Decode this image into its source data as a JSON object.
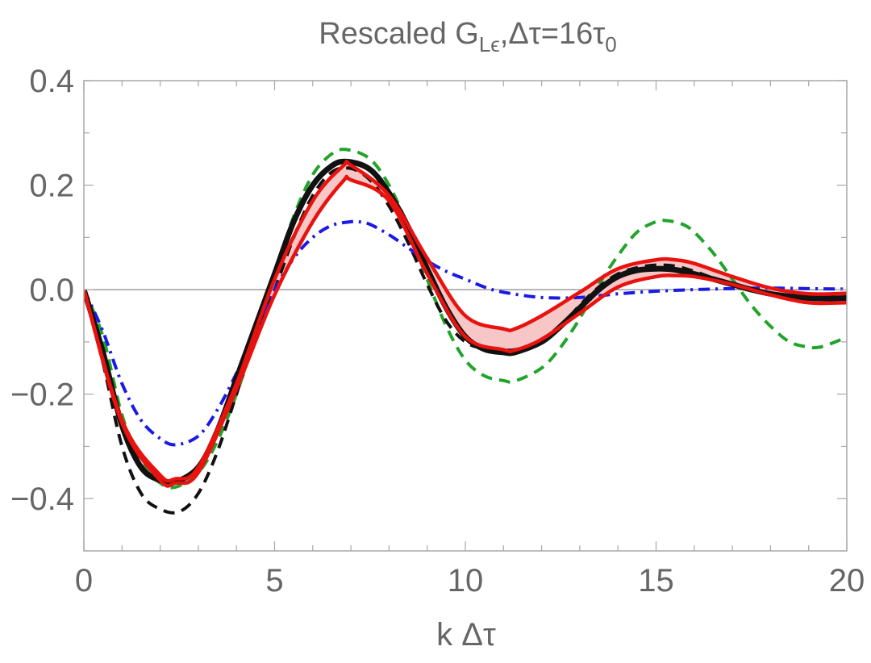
{
  "chart_data": {
    "type": "line",
    "title": {
      "prefix": "Rescaled G",
      "subscript": "Lϵ",
      "middle": ",Δτ=16τ",
      "suffix_subscript": "0"
    },
    "xlabel": "k Δτ",
    "ylabel": "",
    "xlim": [
      0,
      20
    ],
    "ylim": [
      -0.5,
      0.4
    ],
    "x_ticks": [
      0,
      5,
      10,
      15,
      20
    ],
    "x_tick_labels": [
      "0",
      "5",
      "10",
      "15",
      "20"
    ],
    "y_ticks": [
      0.4,
      0.2,
      0.0,
      -0.2,
      -0.4
    ],
    "y_tick_labels": [
      "0.4",
      "0.2",
      "0.0",
      "−0.2",
      "−0.4"
    ],
    "grid": false,
    "zero_line": true,
    "colors": {
      "frame": "#a8a8a8",
      "text": "#666666",
      "red": "#e8120f",
      "band": "#f7c6c6",
      "black": "#111111",
      "green": "#22a32b",
      "blue": "#1a1ae6"
    },
    "band": {
      "name": "red band",
      "x": [
        0,
        1,
        2,
        2.4,
        3,
        4,
        5,
        6,
        6.8,
        7,
        8,
        9,
        10,
        11,
        11.3,
        12,
        13,
        14,
        15,
        15.5,
        16,
        17,
        18,
        19,
        20
      ],
      "upper": [
        0,
        -0.25,
        -0.355,
        -0.362,
        -0.34,
        -0.18,
        0.02,
        0.17,
        0.237,
        0.238,
        0.18,
        0.06,
        -0.05,
        -0.075,
        -0.075,
        -0.05,
        -0.005,
        0.04,
        0.057,
        0.057,
        0.05,
        0.025,
        0.003,
        -0.008,
        -0.007
      ],
      "lower": [
        0,
        -0.255,
        -0.365,
        -0.37,
        -0.35,
        -0.19,
        -0.01,
        0.13,
        0.208,
        0.21,
        0.17,
        0.03,
        -0.09,
        -0.115,
        -0.116,
        -0.095,
        -0.045,
        0.005,
        0.025,
        0.027,
        0.025,
        0.01,
        -0.01,
        -0.025,
        -0.025
      ]
    },
    "series": [
      {
        "name": "green dashed",
        "style": "dashed",
        "color": "#22a32b",
        "x": [
          0,
          0.5,
          1,
          1.5,
          2,
          2.4,
          3,
          3.5,
          4,
          4.5,
          5,
          5.5,
          6,
          6.5,
          6.9,
          7.5,
          8,
          8.5,
          9,
          9.5,
          10,
          10.5,
          11,
          11.3,
          12,
          12.5,
          13,
          13.5,
          14,
          14.5,
          15,
          15.3,
          15.7,
          16,
          16.5,
          17,
          17.5,
          18,
          18.5,
          19,
          19.3,
          19.7,
          20
        ],
        "y": [
          0,
          -0.09,
          -0.24,
          -0.33,
          -0.37,
          -0.378,
          -0.35,
          -0.29,
          -0.2,
          -0.09,
          0.03,
          0.14,
          0.22,
          0.26,
          0.268,
          0.25,
          0.2,
          0.12,
          0.02,
          -0.07,
          -0.135,
          -0.165,
          -0.174,
          -0.175,
          -0.15,
          -0.11,
          -0.055,
          0.01,
          0.065,
          0.11,
          0.13,
          0.132,
          0.125,
          0.11,
          0.07,
          0.02,
          -0.03,
          -0.07,
          -0.1,
          -0.11,
          -0.11,
          -0.1,
          -0.09
        ]
      },
      {
        "name": "black dashed",
        "style": "dashed",
        "color": "#111111",
        "x": [
          0,
          0.5,
          1,
          1.5,
          2,
          2.5,
          3,
          3.5,
          4,
          4.5,
          5,
          5.5,
          6,
          6.5,
          7,
          7.5,
          8,
          8.5,
          9,
          9.5,
          10,
          10.5,
          11,
          11.3,
          12,
          12.5,
          13,
          13.5,
          14,
          14.5,
          15,
          15.5,
          16,
          16.5,
          17,
          17.5,
          18,
          18.5,
          19,
          19.5,
          20
        ],
        "y": [
          0,
          -0.14,
          -0.3,
          -0.39,
          -0.42,
          -0.425,
          -0.39,
          -0.31,
          -0.2,
          -0.09,
          0.0,
          0.1,
          0.18,
          0.225,
          0.232,
          0.21,
          0.16,
          0.09,
          0.01,
          -0.06,
          -0.1,
          -0.113,
          -0.115,
          -0.115,
          -0.1,
          -0.07,
          -0.03,
          0.005,
          0.03,
          0.042,
          0.047,
          0.045,
          0.035,
          0.022,
          0.01,
          0.0,
          -0.008,
          -0.013,
          -0.015,
          -0.015,
          -0.013
        ]
      },
      {
        "name": "blue dash-dot",
        "style": "dashdot",
        "color": "#1a1ae6",
        "x": [
          0,
          0.5,
          1,
          1.5,
          2,
          2.4,
          3,
          3.5,
          4,
          4.5,
          5,
          5.5,
          6,
          6.5,
          7,
          7.2,
          7.5,
          8,
          8.5,
          9,
          9.5,
          10,
          10.5,
          11,
          12,
          13,
          14,
          15,
          16,
          17,
          18,
          19,
          20
        ],
        "y": [
          0,
          -0.08,
          -0.18,
          -0.25,
          -0.285,
          -0.297,
          -0.28,
          -0.23,
          -0.16,
          -0.08,
          0.0,
          0.06,
          0.1,
          0.123,
          0.13,
          0.13,
          0.125,
          0.105,
          0.08,
          0.055,
          0.035,
          0.02,
          0.005,
          -0.005,
          -0.015,
          -0.015,
          -0.008,
          -0.003,
          0.0,
          0.002,
          0.003,
          0.002,
          0.001
        ]
      },
      {
        "name": "black solid",
        "style": "solid",
        "color": "#111111",
        "x": [
          0,
          0.5,
          1,
          1.5,
          2,
          2.4,
          3,
          3.5,
          4,
          4.5,
          5,
          5.5,
          6,
          6.5,
          6.9,
          7.5,
          8,
          8.5,
          9,
          9.5,
          10,
          10.5,
          11,
          11.3,
          12,
          12.5,
          13,
          13.5,
          14,
          14.5,
          15,
          15.5,
          16,
          16.5,
          17,
          17.5,
          18,
          18.5,
          19,
          19.5,
          20
        ],
        "y": [
          0,
          -0.12,
          -0.26,
          -0.34,
          -0.365,
          -0.368,
          -0.34,
          -0.27,
          -0.17,
          -0.07,
          0.03,
          0.13,
          0.2,
          0.237,
          0.245,
          0.23,
          0.185,
          0.12,
          0.04,
          -0.035,
          -0.09,
          -0.114,
          -0.12,
          -0.12,
          -0.1,
          -0.07,
          -0.035,
          0.0,
          0.025,
          0.037,
          0.04,
          0.038,
          0.03,
          0.02,
          0.01,
          0.0,
          -0.008,
          -0.013,
          -0.016,
          -0.017,
          -0.016
        ]
      },
      {
        "name": "red upper",
        "style": "solid",
        "color": "#e8120f",
        "band_edge": "upper"
      },
      {
        "name": "red lower",
        "style": "solid",
        "color": "#e8120f",
        "band_edge": "lower"
      }
    ]
  }
}
